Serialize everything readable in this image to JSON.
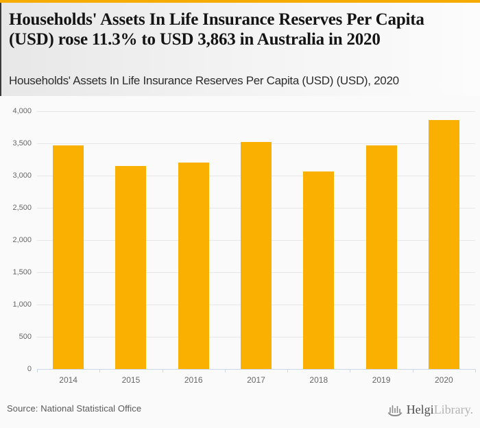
{
  "header": {
    "title": "Households' Assets In Life Insurance Reserves Per Capita (USD) rose 11.3% to USD 3,863 in Australia in 2020",
    "subtitle": "Households' Assets In Life Insurance Reserves Per Capita (USD) (USD), 2020"
  },
  "chart_data": {
    "type": "bar",
    "categories": [
      "2014",
      "2015",
      "2016",
      "2017",
      "2018",
      "2019",
      "2020"
    ],
    "values": [
      3465,
      3150,
      3200,
      3525,
      3065,
      3470,
      3863
    ],
    "title": "Households' Assets In Life Insurance Reserves Per Capita (USD) (USD), 2020",
    "xlabel": "",
    "ylabel": "",
    "ylim": [
      0,
      4000
    ],
    "ytick_step": 500,
    "yticks": [
      {
        "value": 0,
        "label": "0"
      },
      {
        "value": 500,
        "label": "500"
      },
      {
        "value": 1000,
        "label": "1,000"
      },
      {
        "value": 1500,
        "label": "1,500"
      },
      {
        "value": 2000,
        "label": "2,000"
      },
      {
        "value": 2500,
        "label": "2,500"
      },
      {
        "value": 3000,
        "label": "3,000"
      },
      {
        "value": 3500,
        "label": "3,500"
      },
      {
        "value": 4000,
        "label": "4,000"
      }
    ],
    "grid": true,
    "legend": false,
    "bar_color": "#f9b000",
    "gridline_color": "#e7e7e7",
    "axis_line_color": "#ccd6eb",
    "tick_label_color": "#666666"
  },
  "colors": {
    "accent_top_bar": "#f5ab00",
    "page_background": "#fafafa",
    "header_background_left": "#e7e7e7",
    "title_text": "#141414"
  },
  "footer": {
    "source": "Source: National Statistical Office",
    "logo_primary": "Helgi",
    "logo_secondary": "Library."
  }
}
